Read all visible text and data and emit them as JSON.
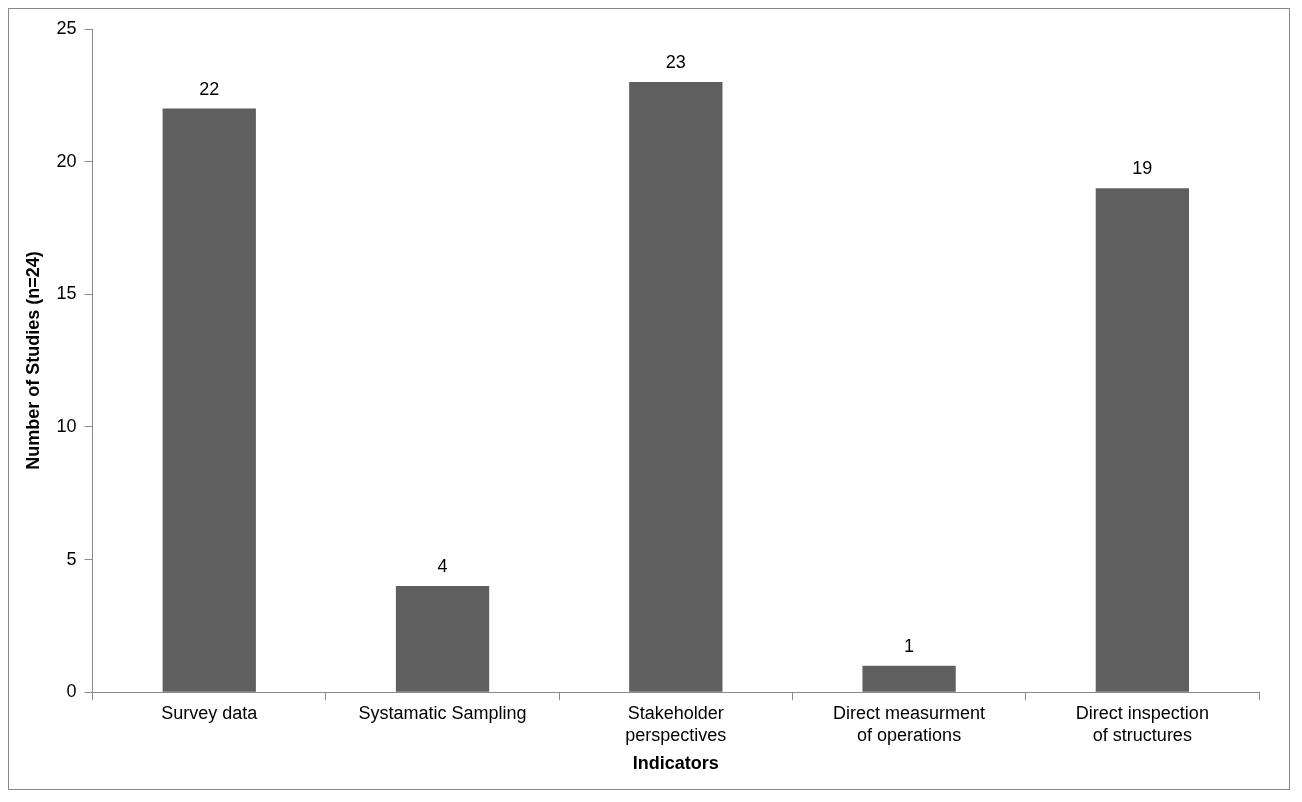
{
  "chart_data": {
    "type": "bar",
    "xlabel": "Indicators",
    "ylabel": "Number of Studies (n=24)",
    "categories": [
      "Survey data",
      "Systamatic Sampling",
      "Stakeholder perspectives",
      "Direct measurment of operations",
      "Direct inspection of structures"
    ],
    "values": [
      22,
      4,
      23,
      1,
      19
    ],
    "color": "#5f5f5f",
    "ylim": [
      0,
      25
    ],
    "yticks": [
      0,
      5,
      10,
      15,
      20,
      25
    ],
    "grid": false,
    "legend": false,
    "data_labels": true
  }
}
